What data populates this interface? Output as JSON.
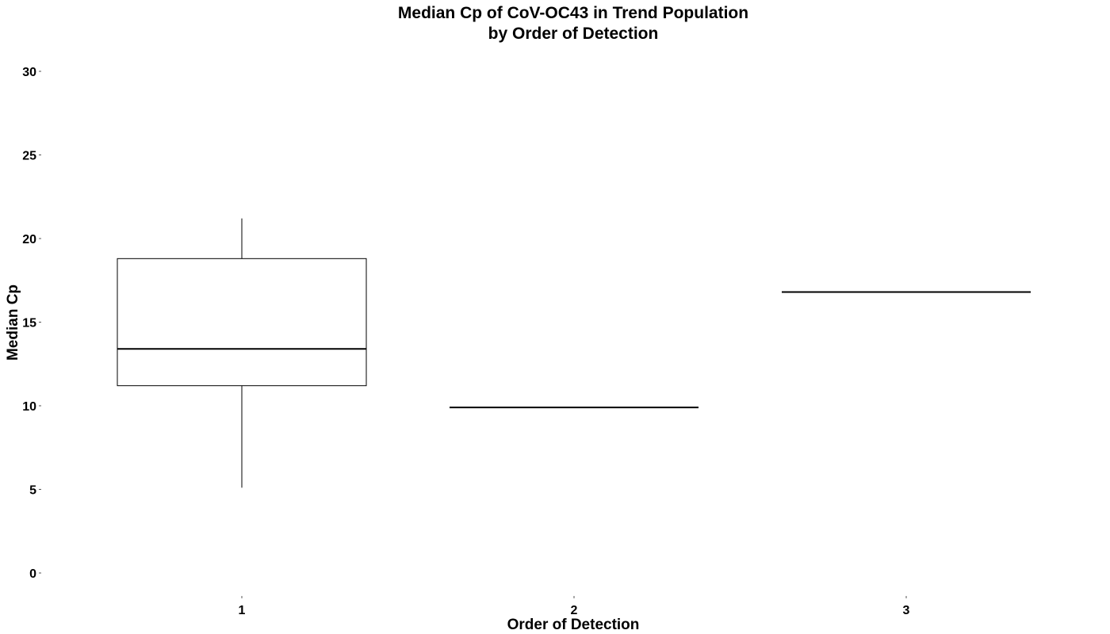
{
  "chart_data": {
    "type": "box",
    "title": [
      "Median Cp of CoV-OC43 in Trend Population",
      "by Order of Detection"
    ],
    "xlabel": "Order of Detection",
    "ylabel": "Median Cp",
    "categories": [
      "1",
      "2",
      "3"
    ],
    "ylim": [
      0,
      30
    ],
    "yticks": [
      0,
      5,
      10,
      15,
      20,
      25,
      30
    ],
    "grid": false,
    "legend": "none",
    "boxes": [
      {
        "category": "1",
        "min": 5.1,
        "q1": 11.2,
        "median": 13.4,
        "q3": 18.8,
        "max": 21.2
      },
      {
        "category": "2",
        "min": 9.9,
        "q1": 9.9,
        "median": 9.9,
        "q3": 9.9,
        "max": 9.9
      },
      {
        "category": "3",
        "min": 16.8,
        "q1": 16.8,
        "median": 16.8,
        "q3": 16.8,
        "max": 16.8
      }
    ]
  }
}
